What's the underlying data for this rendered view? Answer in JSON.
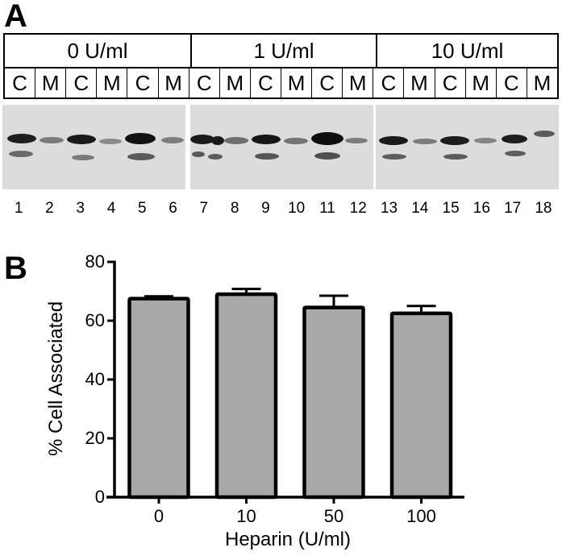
{
  "panel_a": {
    "label": "A",
    "groups": [
      {
        "label": "0 U/ml",
        "lanes": [
          "C",
          "M",
          "C",
          "M",
          "C",
          "M"
        ]
      },
      {
        "label": "1 U/ml",
        "lanes": [
          "C",
          "M",
          "C",
          "M",
          "C",
          "M"
        ]
      },
      {
        "label": "10 U/ml",
        "lanes": [
          "C",
          "M",
          "C",
          "M",
          "C",
          "M"
        ]
      }
    ],
    "lane_numbers": [
      "1",
      "2",
      "3",
      "4",
      "5",
      "6",
      "7",
      "8",
      "9",
      "10",
      "11",
      "12",
      "13",
      "14",
      "15",
      "16",
      "17",
      "18"
    ]
  },
  "panel_b": {
    "label": "B"
  },
  "chart_data": {
    "type": "bar",
    "title": "",
    "xlabel": "Heparin (U/ml)",
    "ylabel": "% Cell Associated",
    "categories": [
      "0",
      "10",
      "50",
      "100"
    ],
    "values": [
      67.5,
      69,
      64.5,
      62.5
    ],
    "error_bars": [
      0.8,
      1.8,
      4,
      2.5
    ],
    "ylim": [
      0,
      80
    ],
    "yticks": [
      "0",
      "20",
      "40",
      "60",
      "80"
    ],
    "grid": false,
    "legend": null,
    "bar_color": "#a8a8a8",
    "edge_color": "#000000"
  }
}
